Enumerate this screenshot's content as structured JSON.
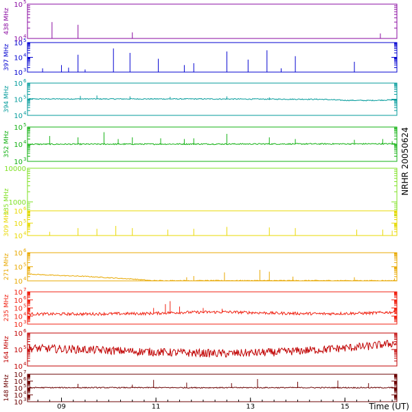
{
  "chart_data": {
    "type": "line",
    "station_label": "NRHR 20050624",
    "xaxis": {
      "title": "Time (UT)",
      "range": [
        8.28,
        16.1
      ],
      "ticks": [
        {
          "value": 9,
          "label": "09"
        },
        {
          "value": 11,
          "label": "11"
        },
        {
          "value": 13,
          "label": "13"
        },
        {
          "value": 15,
          "label": "15"
        }
      ],
      "minor_step": 0.25
    },
    "series": [
      {
        "name": "438 MHz",
        "color": "#8a0aa0",
        "log": true,
        "ymin": 10000,
        "ymax": 100000,
        "tick_labels": [
          {
            "value": 100000,
            "mant": "10",
            "exp": "5"
          },
          {
            "value": 10000,
            "mant": "10",
            "exp": "4"
          }
        ],
        "baseline": [
          [
            8.28,
            10000
          ],
          [
            16.1,
            10000
          ]
        ],
        "spikes": [
          [
            8.8,
            30000
          ],
          [
            9.35,
            25000
          ],
          [
            10.5,
            15000
          ],
          [
            15.75,
            14000
          ]
        ]
      },
      {
        "name": "397 MHz",
        "color": "#0000d0",
        "log": true,
        "ymin": 1000,
        "ymax": 100000,
        "tick_labels": [
          {
            "value": 100000,
            "mant": "10",
            "exp": "5"
          },
          {
            "value": 10000,
            "mant": "10",
            "exp": "4"
          },
          {
            "value": 1000,
            "mant": "10",
            "exp": "3"
          }
        ],
        "baseline": [
          [
            8.28,
            1000
          ],
          [
            16.1,
            1000
          ]
        ],
        "spikes": [
          [
            8.6,
            1800
          ],
          [
            9.0,
            3000
          ],
          [
            9.15,
            2000
          ],
          [
            9.35,
            15000
          ],
          [
            9.5,
            1500
          ],
          [
            10.1,
            40000
          ],
          [
            10.45,
            20000
          ],
          [
            11.05,
            8000
          ],
          [
            11.6,
            3000
          ],
          [
            11.8,
            4000
          ],
          [
            12.5,
            25000
          ],
          [
            12.95,
            7000
          ],
          [
            13.35,
            30000
          ],
          [
            13.65,
            1800
          ],
          [
            13.95,
            12000
          ],
          [
            15.2,
            5000
          ]
        ]
      },
      {
        "name": "394 MHz",
        "color": "#009a9a",
        "log": true,
        "ymin": 10000,
        "ymax": 1000000,
        "tick_labels": [
          {
            "value": 1000000,
            "mant": "10",
            "exp": "6"
          },
          {
            "value": 100000,
            "mant": "10",
            "exp": "5"
          },
          {
            "value": 10000,
            "mant": "10",
            "exp": "4"
          }
        ],
        "baseline": [
          [
            8.28,
            100000
          ],
          [
            12.0,
            100000
          ],
          [
            14.5,
            95000
          ],
          [
            15.0,
            82000
          ],
          [
            15.5,
            80000
          ],
          [
            16.1,
            88000
          ]
        ],
        "noise": 0.06,
        "spikes": [
          [
            9.4,
            160000
          ],
          [
            9.75,
            170000
          ],
          [
            10.45,
            150000
          ],
          [
            11.3,
            140000
          ],
          [
            12.5,
            150000
          ],
          [
            13.4,
            130000
          ]
        ]
      },
      {
        "name": "352 MHz",
        "color": "#10b010",
        "log": true,
        "ymin": 1000,
        "ymax": 100000,
        "tick_labels": [
          {
            "value": 100000,
            "mant": "10",
            "exp": "5"
          },
          {
            "value": 10000,
            "mant": "10",
            "exp": "4"
          },
          {
            "value": 1000,
            "mant": "10",
            "exp": "3"
          }
        ],
        "baseline": [
          [
            8.28,
            9500
          ],
          [
            16.1,
            10000
          ]
        ],
        "noise": 0.07,
        "spikes": [
          [
            8.75,
            30000
          ],
          [
            9.35,
            25000
          ],
          [
            9.9,
            50000
          ],
          [
            10.2,
            20000
          ],
          [
            10.5,
            25000
          ],
          [
            11.1,
            22000
          ],
          [
            11.6,
            20000
          ],
          [
            11.8,
            22000
          ],
          [
            12.5,
            40000
          ],
          [
            13.4,
            25000
          ],
          [
            13.95,
            20000
          ],
          [
            15.2,
            18000
          ],
          [
            15.8,
            20000
          ],
          [
            16.0,
            15000
          ]
        ]
      },
      {
        "name": "335 MHz",
        "color": "#7ee020",
        "log": true,
        "ymin": 100,
        "ymax": 10000,
        "tick_labels": [
          {
            "value": 10000,
            "plain": "10000"
          },
          {
            "value": 1000,
            "plain": "1000"
          }
        ],
        "baseline": [
          [
            8.28,
            10000
          ],
          [
            16.1,
            10000
          ]
        ],
        "spikes": []
      },
      {
        "name": "309 MHz",
        "color": "#e8d800",
        "log": true,
        "ymin": 10000,
        "ymax": 1000000,
        "tick_labels": [
          {
            "value": 1000000,
            "mant": "10",
            "exp": "6"
          },
          {
            "value": 100000,
            "mant": "10",
            "exp": "5"
          },
          {
            "value": 10000,
            "mant": "10",
            "exp": "4"
          }
        ],
        "baseline": [
          [
            8.28,
            10000
          ],
          [
            16.1,
            10000
          ]
        ],
        "spikes": [
          [
            8.75,
            20000
          ],
          [
            9.35,
            40000
          ],
          [
            9.75,
            35000
          ],
          [
            10.15,
            60000
          ],
          [
            10.5,
            40000
          ],
          [
            11.25,
            30000
          ],
          [
            11.8,
            35000
          ],
          [
            12.5,
            50000
          ],
          [
            13.4,
            45000
          ],
          [
            13.95,
            40000
          ],
          [
            15.25,
            30000
          ],
          [
            15.8,
            30000
          ],
          [
            16.0,
            25000
          ]
        ]
      },
      {
        "name": "271 MHz",
        "color": "#e8a800",
        "log": true,
        "ymin": 10000,
        "ymax": 1000000,
        "tick_labels": [
          {
            "value": 1000000,
            "mant": "10",
            "exp": "6"
          },
          {
            "value": 100000,
            "mant": "10",
            "exp": "5"
          },
          {
            "value": 10000,
            "mant": "10",
            "exp": "4"
          }
        ],
        "baseline": [
          [
            8.28,
            30000
          ],
          [
            8.8,
            24000
          ],
          [
            9.5,
            20000
          ],
          [
            10.0,
            16000
          ],
          [
            10.5,
            13000
          ],
          [
            10.9,
            10000
          ],
          [
            16.1,
            10000
          ]
        ],
        "noise": 0.06,
        "spikes": [
          [
            11.65,
            18000
          ],
          [
            11.8,
            22000
          ],
          [
            12.45,
            40000
          ],
          [
            13.2,
            60000
          ],
          [
            13.4,
            45000
          ],
          [
            13.9,
            20000
          ],
          [
            15.2,
            18000
          ],
          [
            16.05,
            15000
          ]
        ]
      },
      {
        "name": "235 MHz",
        "color": "#f02010",
        "log": true,
        "ymin": 1000,
        "ymax": 10000000,
        "tick_labels": [
          {
            "value": 10000000,
            "mant": "10",
            "exp": "7"
          },
          {
            "value": 1000000,
            "mant": "10",
            "exp": "6"
          },
          {
            "value": 100000,
            "mant": "10",
            "exp": "5"
          },
          {
            "value": 10000,
            "mant": "10",
            "exp": "4"
          },
          {
            "value": 1000,
            "mant": "10",
            "exp": "3"
          }
        ],
        "baseline": [
          [
            8.28,
            14000
          ],
          [
            9.5,
            14000
          ],
          [
            10.0,
            15000
          ],
          [
            10.8,
            16000
          ],
          [
            11.5,
            22000
          ],
          [
            12.5,
            25000
          ],
          [
            13.5,
            18000
          ],
          [
            14.5,
            15000
          ],
          [
            15.5,
            18000
          ],
          [
            16.1,
            25000
          ]
        ],
        "noise": 0.35,
        "spikes": [
          [
            10.95,
            100000
          ],
          [
            11.2,
            300000
          ],
          [
            11.3,
            700000
          ],
          [
            11.5,
            150000
          ],
          [
            12.0,
            100000
          ],
          [
            12.4,
            80000
          ]
        ]
      },
      {
        "name": "164 MHz",
        "color": "#c00000",
        "log": true,
        "ymin": 10000,
        "ymax": 1000000,
        "tick_labels": [
          {
            "value": 1000000,
            "mant": "10",
            "exp": "6"
          },
          {
            "value": 100000,
            "mant": "10",
            "exp": "5"
          },
          {
            "value": 10000,
            "mant": "10",
            "exp": "4"
          }
        ],
        "baseline": [
          [
            8.28,
            85000
          ],
          [
            9.5,
            70000
          ],
          [
            10.5,
            55000
          ],
          [
            11.5,
            45000
          ],
          [
            12.5,
            40000
          ],
          [
            13.5,
            48000
          ],
          [
            14.5,
            70000
          ],
          [
            15.5,
            110000
          ],
          [
            16.1,
            180000
          ]
        ],
        "noise": 0.5,
        "spikes": []
      },
      {
        "name": "148 MHz",
        "color": "#6a0000",
        "log": true,
        "ymin": 1000,
        "ymax": 10000000,
        "tick_labels": [
          {
            "value": 10000000,
            "mant": "10",
            "exp": "7"
          },
          {
            "value": 1000000,
            "mant": "10",
            "exp": "6"
          },
          {
            "value": 100000,
            "mant": "10",
            "exp": "5"
          },
          {
            "value": 10000,
            "mant": "10",
            "exp": "4"
          },
          {
            "value": 1000,
            "mant": "10",
            "exp": "3"
          }
        ],
        "baseline": [
          [
            8.28,
            100000
          ],
          [
            16.1,
            100000
          ]
        ],
        "noise": 0.15,
        "spikes": [
          [
            9.35,
            400000
          ],
          [
            10.5,
            300000
          ],
          [
            10.95,
            1500000
          ],
          [
            11.65,
            600000
          ],
          [
            12.6,
            500000
          ],
          [
            13.15,
            2000000
          ],
          [
            14.0,
            800000
          ],
          [
            14.85,
            1200000
          ],
          [
            15.5,
            500000
          ]
        ]
      }
    ]
  }
}
